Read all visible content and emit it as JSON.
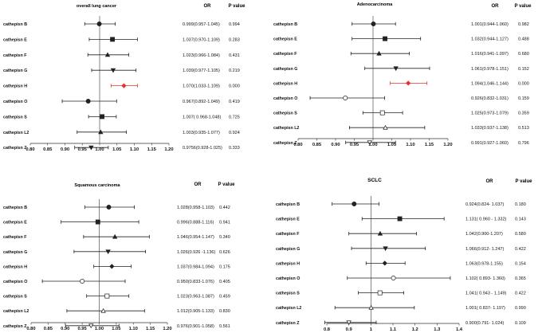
{
  "figure": {
    "or_header": "OR",
    "p_header": "P value",
    "highlight_color": "#e8302a",
    "normal_color": "#222222"
  },
  "chart_data": [
    {
      "type": "forest",
      "title": "overall lung cancer",
      "xlim": [
        0.8,
        1.2
      ],
      "xticks": [
        0.8,
        0.85,
        0.9,
        0.95,
        1.0,
        1.05,
        1.1,
        1.15,
        1.2
      ],
      "xtick_labels": [
        "0.80",
        "0.85",
        "0.90",
        "0.95",
        "1.00",
        "1.05",
        "1.10",
        "1.15",
        "1.20"
      ],
      "reference": 1.0,
      "rows": [
        {
          "label": "cathepisn B",
          "or": 0.999,
          "lo": 0.957,
          "hi": 1.045,
          "or_text": "0.999(0.957-1.045)",
          "p": "0.994",
          "marker": "circle-filled",
          "highlight": false
        },
        {
          "label": "cathepisn E",
          "or": 1.037,
          "lo": 0.97,
          "hi": 1.109,
          "or_text": "1.037(0.970-1.109)",
          "p": "0.283",
          "marker": "square-filled",
          "highlight": false
        },
        {
          "label": "cathepisn F",
          "or": 1.023,
          "lo": 0.966,
          "hi": 1.084,
          "or_text": "1.023(0.966-1.084)",
          "p": "0.431",
          "marker": "triangle-filled",
          "highlight": false
        },
        {
          "label": "cathepisn G",
          "or": 1.039,
          "lo": 0.977,
          "hi": 1.105,
          "or_text": "1.039(0.977-1.105)",
          "p": "0.219",
          "marker": "triangle-down-filled",
          "highlight": false
        },
        {
          "label": "cathepisn H",
          "or": 1.07,
          "lo": 1.033,
          "hi": 1.109,
          "or_text": "1.070(1.033-1.109)",
          "p": "0.000",
          "marker": "diamond-filled",
          "highlight": true
        },
        {
          "label": "cathepisn O",
          "or": 0.967,
          "lo": 0.892,
          "hi": 1.049,
          "or_text": "0.967(0.892-1.049)",
          "p": "0.419",
          "marker": "circle-filled",
          "highlight": false
        },
        {
          "label": "cathepisn S",
          "or": 1.007,
          "lo": 0.968,
          "hi": 1.048,
          "or_text": "1.007( 0.968-1.048)",
          "p": "0.725",
          "marker": "square-filled",
          "highlight": false
        },
        {
          "label": "cathepisn L2",
          "or": 1.003,
          "lo": 0.935,
          "hi": 1.077,
          "or_text": "1.003(0.935-1.077)",
          "p": "0.924",
          "marker": "triangle-filled",
          "highlight": false
        },
        {
          "label": "cathepisn Z",
          "or": 0.9756,
          "lo": 0.928,
          "hi": 1.025,
          "or_text": "0.9756(0.928-1.025)",
          "p": "0.333",
          "marker": "triangle-down-filled",
          "highlight": false
        }
      ]
    },
    {
      "type": "forest",
      "title": "Adenocarcinoma",
      "xlim": [
        0.8,
        1.2
      ],
      "xticks": [
        0.8,
        0.85,
        0.9,
        0.95,
        1.0,
        1.05,
        1.1,
        1.15,
        1.2
      ],
      "xtick_labels": [
        "0.80",
        "0.85",
        "0.90",
        "0.95",
        "1.00",
        "1.05",
        "1.10",
        "1.15",
        "1.20"
      ],
      "reference": 1.0,
      "rows": [
        {
          "label": "cathepisn B",
          "or": 1.001,
          "lo": 0.944,
          "hi": 1.06,
          "or_text": "1.001(0.944-1.060)",
          "p": "0.982",
          "marker": "circle-filled",
          "highlight": false
        },
        {
          "label": "cathepisn E",
          "or": 1.032,
          "lo": 0.944,
          "hi": 1.127,
          "or_text": "1.032(0.944-1.127)",
          "p": "0.488",
          "marker": "square-filled",
          "highlight": false
        },
        {
          "label": "cathepisn F",
          "or": 1.016,
          "lo": 0.941,
          "hi": 1.097,
          "or_text": "1.016(0.941-1.097)",
          "p": "0.680",
          "marker": "triangle-filled",
          "highlight": false
        },
        {
          "label": "cathepisn G",
          "or": 1.061,
          "lo": 0.978,
          "hi": 1.151,
          "or_text": "1.061(0.978-1.151)",
          "p": "0.152",
          "marker": "triangle-down-filled",
          "highlight": false
        },
        {
          "label": "cathepisn H",
          "or": 1.094,
          "lo": 1.046,
          "hi": 1.144,
          "or_text": "1.094(1.046-1.144)",
          "p": "0.000",
          "marker": "diamond-filled",
          "highlight": true
        },
        {
          "label": "cathepisn O",
          "or": 0.926,
          "lo": 0.832,
          "hi": 1.031,
          "or_text": "0.926(0.832-1.031)",
          "p": "0.159",
          "marker": "circle-open",
          "highlight": false
        },
        {
          "label": "cathepisn S",
          "or": 1.025,
          "lo": 0.973,
          "hi": 1.079,
          "or_text": "1.025(0.973-1.079)",
          "p": "0.359",
          "marker": "square-open",
          "highlight": false
        },
        {
          "label": "cathepisn L2",
          "or": 1.033,
          "lo": 0.937,
          "hi": 1.138,
          "or_text": "1.033(0.937-1.138)",
          "p": "0.513",
          "marker": "triangle-open",
          "highlight": false
        },
        {
          "label": "cathepisn Z",
          "or": 0.991,
          "lo": 0.927,
          "hi": 1.06,
          "or_text": "0.991(0.927-1.060)",
          "p": "0.796",
          "marker": "triangle-down-open",
          "highlight": false
        }
      ]
    },
    {
      "type": "forest",
      "title": "Squamous carcinoma",
      "xlim": [
        0.8,
        1.2
      ],
      "xticks": [
        0.8,
        0.85,
        0.9,
        0.95,
        1.0,
        1.05,
        1.1,
        1.15,
        1.2
      ],
      "xtick_labels": [
        "0.80",
        "0.85",
        "0.90",
        "0.95",
        "1.00",
        "1.05",
        "1.10",
        "1.15",
        "1.20"
      ],
      "reference": 1.0,
      "rows": [
        {
          "label": "cathepisn B",
          "or": 1.028,
          "lo": 0.958,
          "hi": 1.103,
          "or_text": "1.028(0.958-1.103)",
          "p": "0.442",
          "marker": "circle-filled",
          "highlight": false
        },
        {
          "label": "cathepisn E",
          "or": 0.996,
          "lo": 0.888,
          "hi": 1.116,
          "or_text": "0.996(0.888-1.116)",
          "p": "0.941",
          "marker": "square-filled",
          "highlight": false
        },
        {
          "label": "cathepisn F",
          "or": 1.046,
          "lo": 0.954,
          "hi": 1.147,
          "or_text": "1.046(0.954-1.147)",
          "p": "0.340",
          "marker": "triangle-filled",
          "highlight": false
        },
        {
          "label": "cathepisn G",
          "or": 1.026,
          "lo": 0.926,
          "hi": 1.136,
          "or_text": "1.026(0.926 -1.136)",
          "p": "0.626",
          "marker": "triangle-down-filled",
          "highlight": false
        },
        {
          "label": "cathepisn H",
          "or": 1.037,
          "lo": 0.984,
          "hi": 1.094,
          "or_text": "1.037(0.984-1.094)",
          "p": "0.175",
          "marker": "diamond-filled",
          "highlight": false
        },
        {
          "label": "cathepisn O",
          "or": 0.95,
          "lo": 0.833,
          "hi": 1.076,
          "or_text": "0.950(0.833-1.076)",
          "p": "0.405",
          "marker": "circle-open",
          "highlight": false
        },
        {
          "label": "cathepisn S",
          "or": 1.023,
          "lo": 0.963,
          "hi": 1.087,
          "or_text": "1.023(0.963-1.087)",
          "p": "0.459",
          "marker": "square-open",
          "highlight": false
        },
        {
          "label": "cathepisn L2",
          "or": 1.012,
          "lo": 0.905,
          "hi": 1.133,
          "or_text": "1.012(0.905-1.133)",
          "p": "0.830",
          "marker": "triangle-open",
          "highlight": false
        },
        {
          "label": "cathepisn Z",
          "or": 0.976,
          "lo": 0.901,
          "hi": 1.058,
          "or_text": "0.976(0.901-1.058)",
          "p": "0.561",
          "marker": "triangle-down-open",
          "highlight": false
        }
      ]
    },
    {
      "type": "forest",
      "title": "SCLC",
      "xlim": [
        0.8,
        1.4
      ],
      "xticks": [
        0.8,
        0.9,
        1.0,
        1.1,
        1.2,
        1.3,
        1.4
      ],
      "xtick_labels": [
        "0.8",
        "0.9",
        "1",
        "1.1",
        "1.2",
        "1.3",
        "1.4"
      ],
      "reference": 1.0,
      "rows": [
        {
          "label": "cathepisn B",
          "or": 0.924,
          "lo": 0.824,
          "hi": 1.037,
          "or_text": "0.924(0.824- 1.037)",
          "p": "0.180",
          "marker": "circle-filled",
          "highlight": false
        },
        {
          "label": "cathepisn E",
          "or": 1.131,
          "lo": 0.96,
          "hi": 1.332,
          "or_text": "1.131( 0.960 - 1.332)",
          "p": "0.143",
          "marker": "square-filled",
          "highlight": false
        },
        {
          "label": "cathepisn F",
          "or": 1.042,
          "lo": 0.9,
          "hi": 1.207,
          "or_text": "1.042(0.900-1.207)",
          "p": "0.580",
          "marker": "triangle-filled",
          "highlight": false
        },
        {
          "label": "cathepisn G",
          "or": 1.066,
          "lo": 0.912,
          "hi": 1.247,
          "or_text": "1.066(0.912- 1.247)",
          "p": "0.422",
          "marker": "triangle-down-filled",
          "highlight": false
        },
        {
          "label": "cathepisn H",
          "or": 1.063,
          "lo": 0.978,
          "hi": 1.155,
          "or_text": "1.063(0.978-1.155)",
          "p": "0.154",
          "marker": "diamond-filled",
          "highlight": false
        },
        {
          "label": "cathepisn O",
          "or": 1.102,
          "lo": 0.893,
          "hi": 1.36,
          "or_text": "1.102( 0.893- 1.360)",
          "p": "0.365",
          "marker": "circle-open",
          "highlight": false
        },
        {
          "label": "cathepisn S",
          "or": 1.041,
          "lo": 0.943,
          "hi": 1.149,
          "or_text": "1.041( 0.943 - 1.149)",
          "p": "0.422",
          "marker": "square-open",
          "highlight": false
        },
        {
          "label": "cathepisn L2",
          "or": 1.001,
          "lo": 0.837,
          "hi": 1.197,
          "or_text": "1.001( 0.837- 1.197)",
          "p": "0.990",
          "marker": "triangle-open",
          "highlight": false
        },
        {
          "label": "cathepisn Z",
          "or": 0.9,
          "lo": 0.791,
          "hi": 1.024,
          "or_text": "0.900(0.791- 1.024)",
          "p": "0.109",
          "marker": "triangle-down-open",
          "highlight": false
        }
      ]
    }
  ]
}
